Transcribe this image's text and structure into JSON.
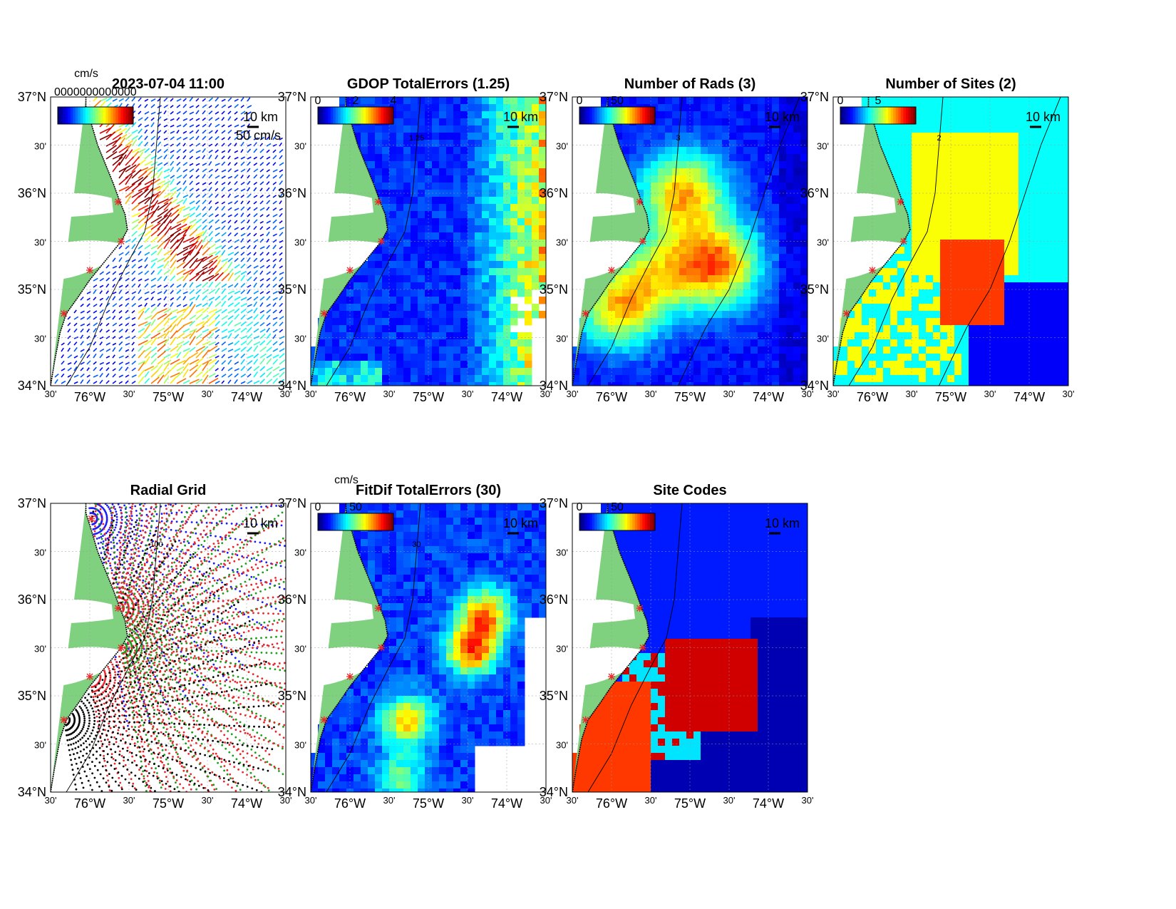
{
  "figure": {
    "panels": [
      {
        "id": "p1",
        "title": "2023-07-04 11:00",
        "kind": "vectors",
        "colorbar": {
          "unit": "cm/s",
          "ticks": []
        },
        "scale_label": "10 km",
        "vector_label": "50 cm/s",
        "overlap_text": "0000000000000"
      },
      {
        "id": "p2",
        "title": "GDOP TotalErrors (1.25)",
        "kind": "gdop",
        "colorbar": {
          "unit": "",
          "ticks": [
            "0",
            "2",
            "4"
          ]
        },
        "scale_label": "10 km",
        "contour_label": "1.25"
      },
      {
        "id": "p3",
        "title": "Number of Rads (3)",
        "kind": "rads",
        "colorbar": {
          "unit": "",
          "ticks": [
            "0",
            "50"
          ]
        },
        "scale_label": "10 km",
        "contour_label": "3"
      },
      {
        "id": "p4",
        "title": "Number of Sites (2)",
        "kind": "sites",
        "colorbar": {
          "unit": "",
          "ticks": [
            "0",
            "5"
          ]
        },
        "scale_label": "10 km",
        "contour_label": "2"
      },
      {
        "id": "p5",
        "title": "Radial Grid",
        "kind": "radial",
        "colorbar": null,
        "scale_label": "10 km",
        "contour_label": "100"
      },
      {
        "id": "p6",
        "title": "FitDif TotalErrors (30)",
        "kind": "fitdif",
        "colorbar": {
          "unit": "cm/s",
          "ticks": [
            "0",
            "50"
          ]
        },
        "scale_label": "10 km",
        "contour_label": "30"
      },
      {
        "id": "p7",
        "title": "Site Codes",
        "kind": "codes",
        "colorbar": {
          "unit": "",
          "ticks": [
            "0",
            "50"
          ]
        },
        "scale_label": "10 km"
      }
    ],
    "axes": {
      "y_labels": [
        "37°N",
        "30'",
        "36°N",
        "30'",
        "35°N",
        "30'",
        "34°N"
      ],
      "x_labels": [
        "30'",
        "76°W",
        "30'",
        "75°W",
        "30'",
        "74°W",
        "30'"
      ],
      "lon_range": [
        -76.5,
        -73.5
      ],
      "lat_range": [
        34,
        37
      ]
    },
    "colors": {
      "land": "#7fd17f",
      "coast": "#000000",
      "site_marker": "#e8262b"
    },
    "sites": [
      {
        "lon": -75.98,
        "lat": 36.84
      },
      {
        "lon": -75.64,
        "lat": 35.91
      },
      {
        "lon": -75.6,
        "lat": 35.5
      },
      {
        "lon": -76.0,
        "lat": 35.2
      },
      {
        "lon": -76.33,
        "lat": 34.75
      }
    ]
  }
}
